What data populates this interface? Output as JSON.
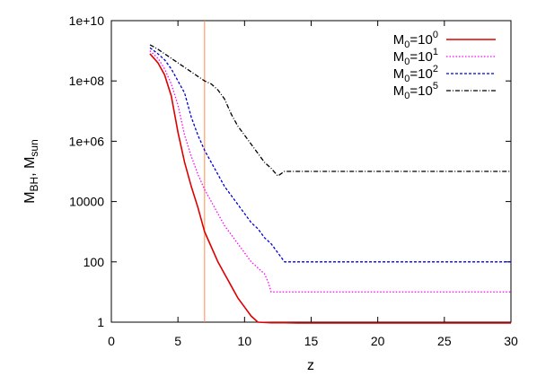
{
  "chart_data": {
    "type": "line",
    "title": "",
    "xlabel": "z",
    "ylabel_parts": {
      "m1": "M",
      "s1": "BH",
      "sep": ", ",
      "m2": "M",
      "s2": "sun"
    },
    "xlim": [
      0,
      30
    ],
    "ylim_log10": [
      0,
      10
    ],
    "yscale": "log",
    "grid": false,
    "legend_position": "top-right",
    "x_ticks": [
      0,
      5,
      10,
      15,
      20,
      25,
      30
    ],
    "x_tick_labels": [
      "0",
      "5",
      "10",
      "15",
      "20",
      "25",
      "30"
    ],
    "y_ticks_log10": [
      0,
      2,
      4,
      6,
      8,
      10
    ],
    "y_tick_labels": [
      "1",
      "100",
      "10000",
      "1e+06",
      "1e+08",
      "1e+10"
    ],
    "vertical_line": {
      "x": 7.0,
      "color": "#ff8c4a"
    },
    "series": [
      {
        "legend": {
          "base": "M",
          "sub": "0",
          "mid": "=10",
          "sup": "0"
        },
        "color": "#dd0000",
        "dash": "",
        "points": [
          [
            2.9,
            8.9
          ],
          [
            3.5,
            8.6
          ],
          [
            4.0,
            8.2
          ],
          [
            4.5,
            7.5
          ],
          [
            5.0,
            6.3
          ],
          [
            5.5,
            5.3
          ],
          [
            6.0,
            4.5
          ],
          [
            6.5,
            3.8
          ],
          [
            7.0,
            3.0
          ],
          [
            7.5,
            2.5
          ],
          [
            8.0,
            2.0
          ],
          [
            8.5,
            1.6
          ],
          [
            9.0,
            1.2
          ],
          [
            9.5,
            0.8
          ],
          [
            10.0,
            0.5
          ],
          [
            10.5,
            0.2
          ],
          [
            11.0,
            0.0
          ],
          [
            12.0,
            -0.02
          ],
          [
            13.0,
            -0.02
          ],
          [
            14.0,
            -0.03
          ],
          [
            30.0,
            -0.03
          ]
        ]
      },
      {
        "legend": {
          "base": "M",
          "sub": "0",
          "mid": "=10",
          "sup": "1"
        },
        "color": "#ff00ff",
        "dash": "1.5,2",
        "points": [
          [
            2.9,
            9.0
          ],
          [
            3.5,
            8.75
          ],
          [
            4.0,
            8.4
          ],
          [
            4.5,
            7.9
          ],
          [
            5.0,
            7.2
          ],
          [
            5.5,
            6.2
          ],
          [
            6.0,
            5.5
          ],
          [
            6.5,
            4.9
          ],
          [
            7.0,
            4.4
          ],
          [
            7.5,
            4.0
          ],
          [
            8.0,
            3.6
          ],
          [
            8.5,
            3.2
          ],
          [
            9.0,
            2.9
          ],
          [
            9.5,
            2.6
          ],
          [
            10.0,
            2.3
          ],
          [
            10.5,
            2.0
          ],
          [
            11.0,
            1.8
          ],
          [
            11.5,
            1.6
          ],
          [
            11.8,
            1.3
          ],
          [
            12.0,
            1.0
          ],
          [
            13.0,
            1.0
          ],
          [
            30.0,
            1.0
          ]
        ]
      },
      {
        "legend": {
          "base": "M",
          "sub": "0",
          "mid": "=10",
          "sup": "2"
        },
        "color": "#0000dd",
        "dash": "3,2",
        "points": [
          [
            2.9,
            9.1
          ],
          [
            3.5,
            8.9
          ],
          [
            4.0,
            8.7
          ],
          [
            4.5,
            8.4
          ],
          [
            5.0,
            8.0
          ],
          [
            5.5,
            7.6
          ],
          [
            6.0,
            6.8
          ],
          [
            6.5,
            6.2
          ],
          [
            7.0,
            5.7
          ],
          [
            7.5,
            5.3
          ],
          [
            8.0,
            4.9
          ],
          [
            8.5,
            4.5
          ],
          [
            9.0,
            4.2
          ],
          [
            9.5,
            3.9
          ],
          [
            10.0,
            3.6
          ],
          [
            10.5,
            3.3
          ],
          [
            11.0,
            3.1
          ],
          [
            11.5,
            2.8
          ],
          [
            12.0,
            2.6
          ],
          [
            12.5,
            2.3
          ],
          [
            13.0,
            2.0
          ],
          [
            30.0,
            2.0
          ]
        ]
      },
      {
        "legend": {
          "base": "M",
          "sub": "0",
          "mid": "=10",
          "sup": "5"
        },
        "color": "#000000",
        "dash": "5,2,1,2",
        "points": [
          [
            2.9,
            9.2
          ],
          [
            3.5,
            9.05
          ],
          [
            4.0,
            8.9
          ],
          [
            4.5,
            8.75
          ],
          [
            5.0,
            8.6
          ],
          [
            5.5,
            8.45
          ],
          [
            6.0,
            8.3
          ],
          [
            6.5,
            8.15
          ],
          [
            7.0,
            8.0
          ],
          [
            7.5,
            7.9
          ],
          [
            8.0,
            7.7
          ],
          [
            8.5,
            7.4
          ],
          [
            9.0,
            6.9
          ],
          [
            9.5,
            6.5
          ],
          [
            10.0,
            6.2
          ],
          [
            10.5,
            5.9
          ],
          [
            11.0,
            5.6
          ],
          [
            11.5,
            5.3
          ],
          [
            12.0,
            5.1
          ],
          [
            12.5,
            4.85
          ],
          [
            13.0,
            5.0
          ],
          [
            30.0,
            5.0
          ]
        ]
      }
    ]
  }
}
